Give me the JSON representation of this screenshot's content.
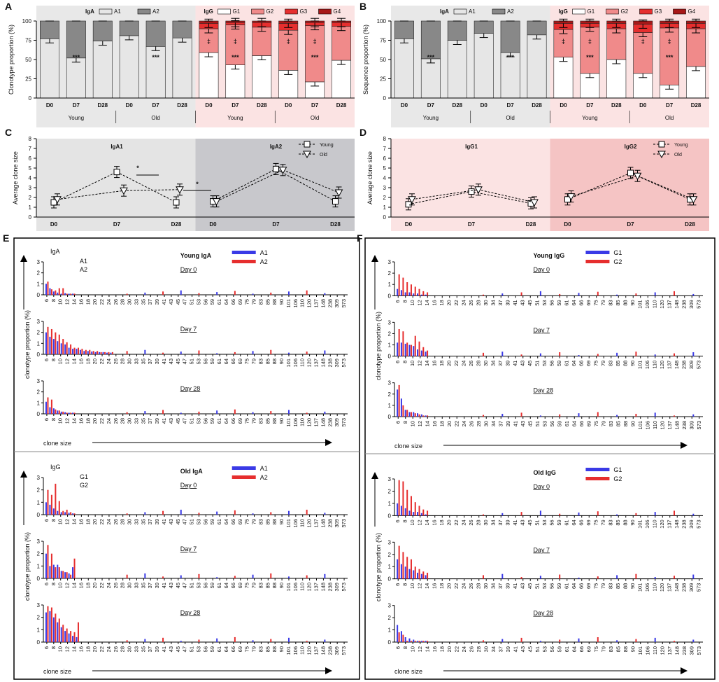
{
  "panels": {
    "A": {
      "letter": "A",
      "ylabel": "Clonotype proportion (%)"
    },
    "B": {
      "letter": "B",
      "ylabel": "Sequence proportion (%)"
    },
    "C": {
      "letter": "C",
      "ylabel": "Average clone size"
    },
    "D": {
      "letter": "D",
      "ylabel": "Average clone size"
    },
    "E": {
      "letter": "E"
    },
    "F": {
      "letter": "F"
    }
  },
  "stacked_common": {
    "day_labels": [
      "D0",
      "D7",
      "D28",
      "D0",
      "D7",
      "D28",
      "D0",
      "D7",
      "D28",
      "D0",
      "D7",
      "D28"
    ],
    "group_labels": [
      "Young",
      "Old",
      "Young",
      "Old"
    ],
    "iga_legend": {
      "title": "IgA",
      "items": [
        "A1",
        "A2"
      ]
    },
    "igg_legend": {
      "title": "IgG",
      "items": [
        "G1",
        "G2",
        "G3",
        "G4"
      ]
    },
    "y_ticks": [
      "0",
      "25",
      "50",
      "75",
      "100"
    ],
    "colors": {
      "A1": "#e6e6e6",
      "A2": "#888888",
      "G1": "#ffffff",
      "G2": "#f08a8a",
      "G3": "#e62e2e",
      "G4": "#a81818",
      "iga_bg": "#e8e8e8",
      "igg_bg": "#fbe3e3"
    }
  },
  "chart_data": [
    {
      "type": "bar",
      "stacked": true,
      "panel": "A",
      "ylabel": "Clonotype proportion (%)",
      "ylim": [
        0,
        100
      ],
      "categories": [
        "Young D0",
        "Young D7",
        "Young D28",
        "Old D0",
        "Old D7",
        "Old D28"
      ],
      "iga": {
        "series": [
          {
            "name": "A1",
            "values": [
              77,
              52,
              74,
              81,
              67,
              78
            ]
          },
          {
            "name": "A2",
            "values": [
              23,
              48,
              26,
              19,
              33,
              22
            ]
          }
        ]
      },
      "igg": {
        "series": [
          {
            "name": "G1",
            "values": [
              59,
              43,
              55,
              36,
              21,
              49
            ]
          },
          {
            "name": "G2",
            "values": [
              31,
              52,
              37,
              52,
              73,
              44
            ]
          },
          {
            "name": "G3",
            "values": [
              7,
              3,
              6,
              9,
              4,
              5
            ]
          },
          {
            "name": "G4",
            "values": [
              3,
              2,
              2,
              3,
              2,
              2
            ]
          }
        ]
      },
      "annotations": {
        "iga": [
          "",
          "***",
          "",
          "",
          "***",
          ""
        ],
        "igg_top": [
          "‡",
          "‡",
          "",
          "‡",
          "‡",
          ""
        ],
        "igg_bottom": [
          "",
          "***",
          "",
          "",
          "***",
          ""
        ]
      }
    },
    {
      "type": "bar",
      "stacked": true,
      "panel": "B",
      "ylabel": "Sequence proportion (%)",
      "ylim": [
        0,
        100
      ],
      "categories": [
        "Young D0",
        "Young D7",
        "Young D28",
        "Old D0",
        "Old D7",
        "Old D28"
      ],
      "iga": {
        "series": [
          {
            "name": "A1",
            "values": [
              77,
              51,
              75,
              84,
              59,
              82
            ]
          },
          {
            "name": "A2",
            "values": [
              23,
              49,
              25,
              16,
              41,
              18
            ]
          }
        ]
      },
      "igg": {
        "series": [
          {
            "name": "G1",
            "values": [
              53,
              32,
              50,
              32,
              17,
              41
            ]
          },
          {
            "name": "G2",
            "values": [
              36,
              60,
              40,
              53,
              74,
              49
            ]
          },
          {
            "name": "G3",
            "values": [
              8,
              5,
              7,
              11,
              6,
              7
            ]
          },
          {
            "name": "G4",
            "values": [
              3,
              3,
              3,
              4,
              3,
              3
            ]
          }
        ]
      },
      "annotations": {
        "iga": [
          "",
          "***",
          "",
          "",
          "***",
          ""
        ],
        "igg_top": [
          "‡",
          "‡",
          "",
          "‡",
          "‡",
          ""
        ],
        "igg_bottom": [
          "",
          "***",
          "",
          "",
          "***",
          ""
        ]
      }
    },
    {
      "type": "line",
      "panel": "C",
      "ylabel": "Average clone size",
      "ylim": [
        0,
        8
      ],
      "y_ticks": [
        "0",
        "1",
        "2",
        "3",
        "4",
        "5",
        "6",
        "7",
        "8"
      ],
      "subpanels": [
        {
          "title": "IgA1",
          "categories": [
            "D0",
            "D7",
            "D28"
          ],
          "series": [
            {
              "name": "Young",
              "values": [
                1.5,
                4.6,
                1.5
              ]
            },
            {
              "name": "Old",
              "values": [
                1.8,
                2.7,
                2.8
              ]
            }
          ]
        },
        {
          "title": "IgA2",
          "categories": [
            "D0",
            "D7",
            "D28"
          ],
          "series": [
            {
              "name": "Young",
              "values": [
                1.6,
                4.9,
                1.6
              ]
            },
            {
              "name": "Old",
              "values": [
                1.6,
                4.8,
                2.5
              ]
            }
          ]
        }
      ],
      "legend": [
        "Young",
        "Old"
      ],
      "annotations": [
        "*",
        "*"
      ]
    },
    {
      "type": "line",
      "panel": "D",
      "ylabel": "Average clone size",
      "ylim": [
        0,
        8
      ],
      "y_ticks": [
        "0",
        "1",
        "2",
        "3",
        "4",
        "5",
        "6",
        "7",
        "8"
      ],
      "subpanels": [
        {
          "title": "IgG1",
          "categories": [
            "D0",
            "D7",
            "D28"
          ],
          "series": [
            {
              "name": "Young",
              "values": [
                1.3,
                2.6,
                1.4
              ]
            },
            {
              "name": "Old",
              "values": [
                1.8,
                2.8,
                1.5
              ]
            }
          ]
        },
        {
          "title": "IgG2",
          "categories": [
            "D0",
            "D7",
            "D28"
          ],
          "series": [
            {
              "name": "Young",
              "values": [
                1.8,
                4.5,
                1.8
              ]
            },
            {
              "name": "Old",
              "values": [
                2.1,
                4.2,
                1.8
              ]
            }
          ]
        }
      ],
      "legend": [
        "Young",
        "Old"
      ]
    },
    {
      "type": "bar",
      "panel": "E-top",
      "title": "Young IgA",
      "legend": [
        "A1",
        "A2"
      ],
      "side_label": "IgA",
      "side_items": [
        "A1",
        "A2"
      ],
      "ylabel": "clonotype proportion (%)",
      "xlabel": "clone size",
      "ylim": [
        0,
        3
      ],
      "rows": [
        {
          "day": "Day 0",
          "A1": [
            1.0,
            0.6,
            0.3,
            0.2,
            0.1,
            0.15,
            0.1,
            0.1
          ],
          "A2": [
            1.2,
            0.5,
            0.4,
            0.6,
            0.6,
            0.1,
            0.1,
            0.1
          ]
        },
        {
          "day": "Day 7",
          "A1": [
            2.0,
            1.6,
            1.4,
            1.2,
            1.0,
            0.9,
            0.6,
            0.5,
            0.5,
            0.4,
            0.3,
            0.3,
            0.25,
            0.2,
            0.2,
            0.2,
            0.15,
            0.15
          ],
          "A2": [
            2.5,
            2.3,
            2.0,
            1.8,
            1.4,
            1.1,
            0.9,
            0.6,
            0.6,
            0.5,
            0.4,
            0.4,
            0.3,
            0.3,
            0.2,
            0.2,
            0.2,
            0.2
          ]
        },
        {
          "day": "Day 28",
          "A1": [
            1.1,
            0.6,
            0.5,
            0.3,
            0.2,
            0.15,
            0.1,
            0.1
          ],
          "A2": [
            1.5,
            1.3,
            0.4,
            0.3,
            0.2,
            0.1,
            0.1,
            0.1
          ]
        }
      ]
    },
    {
      "type": "bar",
      "panel": "E-bottom",
      "title": "Old IgA",
      "legend": [
        "A1",
        "A2"
      ],
      "side_label": "IgG",
      "side_items": [
        "G1",
        "G2"
      ],
      "ylabel": "clonotype proportion  (%)",
      "xlabel": "clone size",
      "ylim": [
        0,
        3
      ],
      "rows": [
        {
          "day": "Day 0",
          "A1": [
            1.0,
            0.8,
            0.5,
            0.3,
            0.2,
            0.2,
            0.15,
            0.1
          ],
          "A2": [
            2.0,
            1.6,
            2.5,
            1.1,
            0.3,
            0.4,
            0.2,
            0.1
          ]
        },
        {
          "day": "Day 7",
          "A1": [
            2.0,
            1.0,
            1.1,
            1.1,
            0.6,
            0.5,
            0.4,
            0.9
          ],
          "A2": [
            2.7,
            2.0,
            0.9,
            0.9,
            0.6,
            0.5,
            0.3,
            1.6
          ]
        },
        {
          "day": "Day 28",
          "A1": [
            2.4,
            2.5,
            2.0,
            1.6,
            1.2,
            0.9,
            0.7,
            0.5,
            0.4
          ],
          "A2": [
            2.9,
            2.8,
            2.3,
            1.9,
            1.4,
            1.1,
            0.9,
            0.8,
            1.6
          ]
        }
      ]
    },
    {
      "type": "bar",
      "panel": "F-top",
      "title": "Young IgG",
      "legend": [
        "G1",
        "G2"
      ],
      "ylabel": "clonotype proportion (%)",
      "xlabel": "clone size",
      "ylim": [
        0,
        3
      ],
      "rows": [
        {
          "day": "Day 0",
          "G1": [
            0.6,
            0.5,
            0.3,
            0.3,
            0.2,
            0.2,
            0.1,
            0.1
          ],
          "G2": [
            1.9,
            1.6,
            1.2,
            1.0,
            0.8,
            0.6,
            0.4,
            0.3
          ]
        },
        {
          "day": "Day 7",
          "G1": [
            1.2,
            1.2,
            1.1,
            1.0,
            0.9,
            0.6,
            0.5,
            0.4
          ],
          "G2": [
            2.4,
            2.2,
            1.2,
            1.0,
            1.8,
            1.3,
            0.8,
            0.5
          ]
        },
        {
          "day": "Day 28",
          "G1": [
            2.4,
            1.6,
            0.6,
            0.4,
            0.4,
            0.3,
            0.2,
            0.1
          ],
          "G2": [
            2.8,
            1.0,
            0.6,
            0.4,
            0.3,
            0.2,
            0.1,
            0.1
          ]
        }
      ]
    },
    {
      "type": "bar",
      "panel": "F-bottom",
      "title": "Old  IgG",
      "legend": [
        "G1",
        "G2"
      ],
      "ylabel": "clonotype proportion  (%)",
      "xlabel": "clone size",
      "ylim": [
        0,
        3
      ],
      "rows": [
        {
          "day": "Day 0",
          "G1": [
            1.0,
            0.8,
            0.6,
            0.4,
            0.3,
            0.3,
            0.2,
            0.1
          ],
          "G2": [
            2.9,
            2.8,
            2.1,
            1.6,
            1.1,
            0.8,
            0.5,
            0.4
          ]
        },
        {
          "day": "Day 7",
          "G1": [
            1.6,
            1.2,
            1.0,
            0.8,
            0.7,
            0.5,
            0.4,
            0.3
          ],
          "G2": [
            2.7,
            2.2,
            1.8,
            1.6,
            1.0,
            0.8,
            0.6,
            0.5
          ]
        },
        {
          "day": "Day 28",
          "G1": [
            1.4,
            0.9,
            0.4,
            0.3,
            0.2,
            0.1,
            0.1,
            0.1
          ],
          "G2": [
            0.8,
            0.6,
            0.1,
            0.1,
            0.1,
            0.1,
            0.1,
            0.1
          ]
        }
      ]
    }
  ],
  "clone_sizes": [
    "6",
    "8",
    "10",
    "12",
    "14",
    "16",
    "18",
    "20",
    "22",
    "24",
    "26",
    "28",
    "30",
    "33",
    "35",
    "37",
    "39",
    "41",
    "43",
    "45",
    "47",
    "51",
    "53",
    "56",
    "59",
    "61",
    "64",
    "66",
    "69",
    "75",
    "79",
    "83",
    "85",
    "88",
    "90",
    "101",
    "106",
    "110",
    "120",
    "137",
    "148",
    "238",
    "309",
    "573"
  ],
  "clone_sizes_short": [
    "6",
    "8",
    "10",
    "12",
    "14",
    "16",
    "18",
    "20",
    "22",
    "24",
    "26",
    "28",
    "30",
    "34",
    "37",
    "39",
    "41",
    "43",
    "45",
    "51",
    "53",
    "56",
    "59",
    "61",
    "64",
    "66",
    "69",
    "75",
    "79",
    "83",
    "85",
    "88",
    "90",
    "101",
    "106",
    "110",
    "120",
    "137",
    "148",
    "238",
    "309",
    "573"
  ]
}
